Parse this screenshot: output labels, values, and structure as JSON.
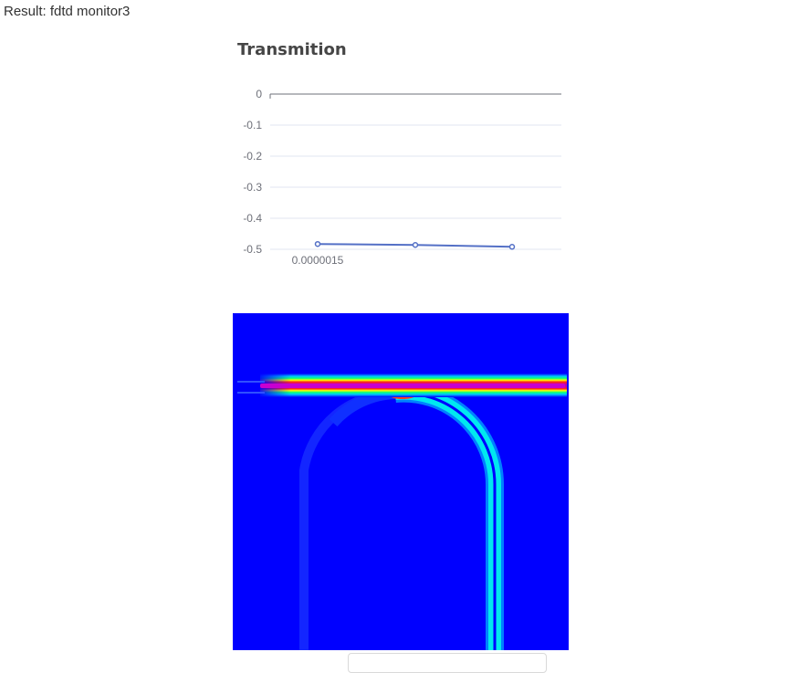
{
  "result": {
    "title": "Result: fdtd monitor3"
  },
  "chart_data": {
    "type": "line",
    "title": "Transmition",
    "xlabel": "",
    "ylabel": "",
    "x_tick_labels": [
      "0.0000015"
    ],
    "y_ticks": [
      0,
      -0.1,
      -0.2,
      -0.3,
      -0.4,
      -0.5
    ],
    "ylim": [
      -0.5,
      0
    ],
    "grid": true,
    "series": [
      {
        "values": [
          -0.483,
          -0.486,
          -0.492
        ]
      }
    ],
    "colors": {
      "line": "#5470c6",
      "axis": "#6e7079",
      "grid": "#e0e6f1",
      "tick_text": "#6e7079"
    }
  },
  "field_map": {
    "colormap": "jet-like",
    "colors": {
      "background": "#0000ff",
      "cyan": "#00ffff",
      "red": "#ff2020",
      "magenta": "#b000c8"
    }
  }
}
